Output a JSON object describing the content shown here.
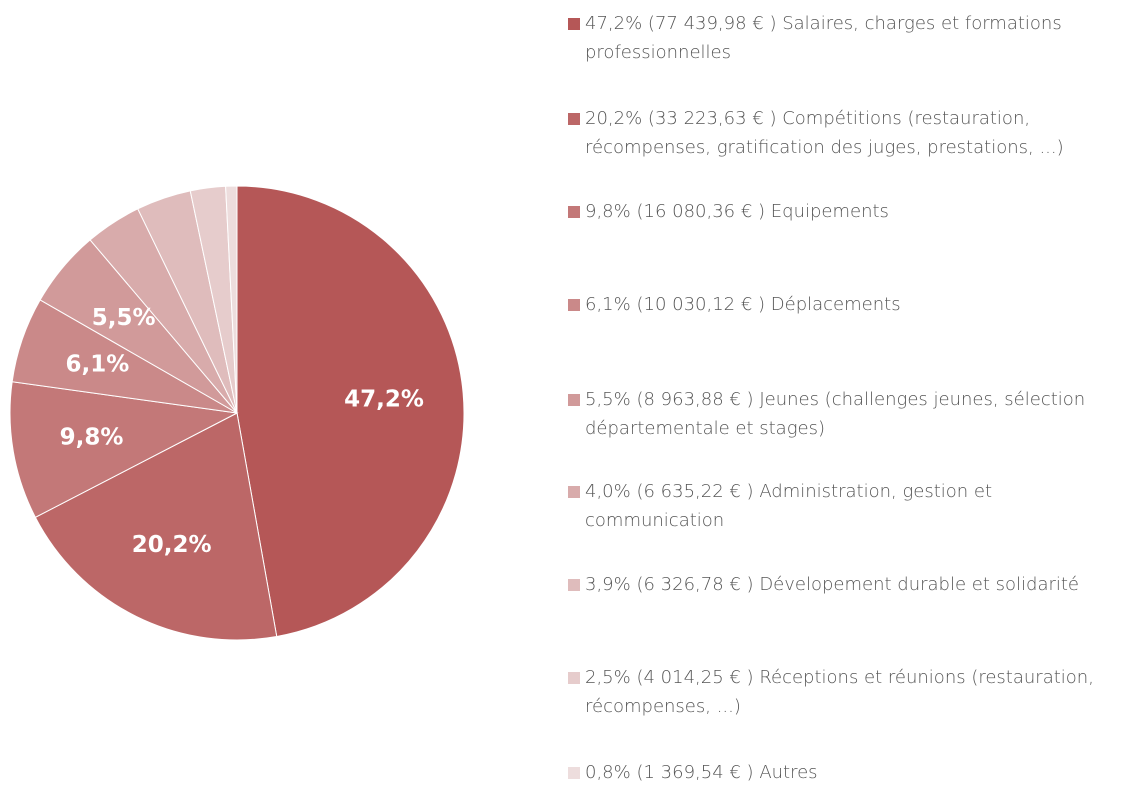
{
  "chart_data": {
    "type": "pie",
    "categories": [
      "Salaires, charges et formations professionnelles",
      "Compétitions (restauration, récompenses, gratification des juges, prestations, ...)",
      "Equipements",
      "Déplacements",
      "Jeunes (challenges jeunes, sélection départementale et stages)",
      "Administration, gestion et communication",
      "Dévelopement durable et solidarité",
      "Réceptions et réunions (restauration, récompenses, ...)",
      "Autres"
    ],
    "values": [
      47.2,
      20.2,
      9.8,
      6.1,
      5.5,
      4.0,
      3.9,
      2.5,
      0.8
    ],
    "value_labels": [
      "47,2%",
      "20,2%",
      "9,8%",
      "6,1%",
      "5,5%",
      "4,0%",
      "3,9%",
      "2,5%",
      "0,8%"
    ],
    "amounts": [
      77439.98,
      33223.63,
      16080.36,
      10030.12,
      8963.88,
      6635.22,
      6326.78,
      4014.25,
      1369.54
    ],
    "amount_labels": [
      "(77 439,98 € )",
      "(33 223,63 € )",
      "(16 080,36 € )",
      "(10 030,12 € )",
      "(8 963,88 € )",
      "(6 635,22 € )",
      "(6 326,78 € )",
      "(4 014,25 € )",
      "(1 369,54 € )"
    ],
    "colors": [
      "#b55757",
      "#bc6767",
      "#c37878",
      "#ca8989",
      "#d19a9a",
      "#d8abab",
      "#dfbcbc",
      "#e6cccc",
      "#eddddd"
    ]
  }
}
